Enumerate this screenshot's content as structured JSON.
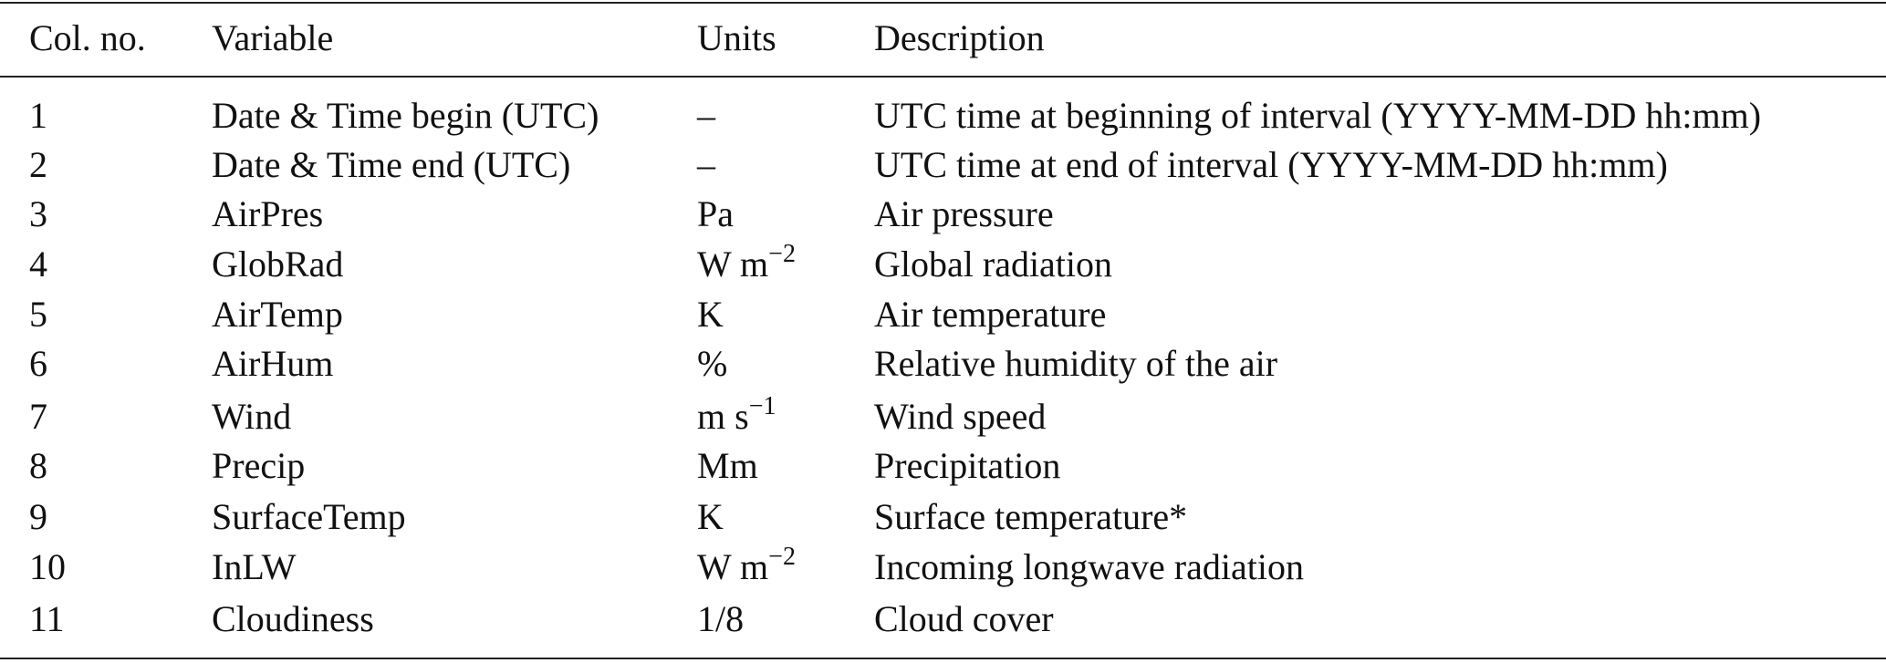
{
  "table": {
    "header": [
      "Col. no.",
      "Variable",
      "Units",
      "Description"
    ],
    "rows": [
      {
        "col": "1",
        "variable": "Date & Time begin (UTC)",
        "units": "–",
        "description": "UTC time at beginning of interval (YYYY-MM-DD hh:mm)"
      },
      {
        "col": "2",
        "variable": "Date & Time end (UTC)",
        "units": "–",
        "description": "UTC time at end of interval (YYYY-MM-DD hh:mm)"
      },
      {
        "col": "3",
        "variable": "AirPres",
        "units": "Pa",
        "description": "Air pressure"
      },
      {
        "col": "4",
        "variable": "GlobRad",
        "units": "W m",
        "units_sup": "−2",
        "description": "Global radiation"
      },
      {
        "col": "5",
        "variable": "AirTemp",
        "units": "K",
        "description": "Air temperature"
      },
      {
        "col": "6",
        "variable": "AirHum",
        "units": "%",
        "description": "Relative humidity of the air"
      },
      {
        "col": "7",
        "variable": "Wind",
        "units": "m s",
        "units_sup": "−1",
        "description": "Wind speed"
      },
      {
        "col": "8",
        "variable": "Precip",
        "units": "Mm",
        "description": "Precipitation"
      },
      {
        "col": "9",
        "variable": "SurfaceTemp",
        "units": "K",
        "description": "Surface temperature*"
      },
      {
        "col": "10",
        "variable": "InLW",
        "units": "W m",
        "units_sup": "−2",
        "description": "Incoming longwave radiation"
      },
      {
        "col": "11",
        "variable": "Cloudiness",
        "units": "1/8",
        "description": "Cloud cover"
      }
    ]
  }
}
